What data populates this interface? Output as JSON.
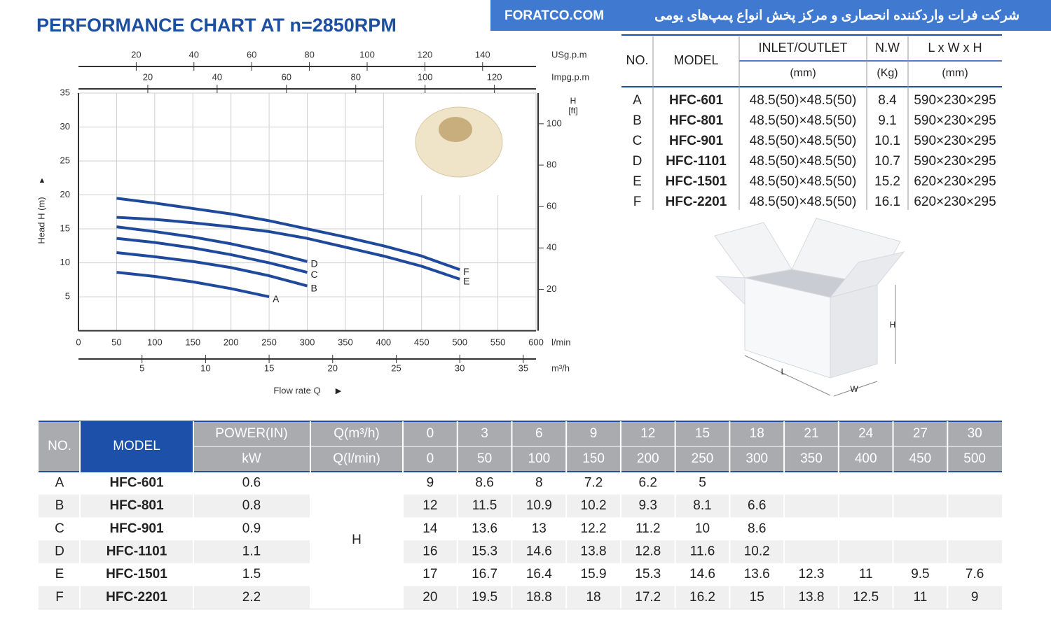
{
  "banner": {
    "site": "FORATCO.COM",
    "text": "شرکت فرات واردکننده انحصاری و مرکز پخش انواع پمپ‌های یومی"
  },
  "chart_data": {
    "type": "line",
    "title": "PERFORMANCE CHART AT n=2850RPM",
    "x": [
      50,
      100,
      150,
      200,
      250,
      300,
      350,
      400,
      450,
      500
    ],
    "xlim": [
      0,
      600
    ],
    "xticks": [
      0,
      50,
      100,
      150,
      200,
      250,
      300,
      350,
      400,
      450,
      500,
      550,
      600
    ],
    "xlabel": "l/min",
    "x_title": "Flow rate Q",
    "ylim": [
      0,
      35
    ],
    "yticks": [
      5,
      10,
      15,
      20,
      25,
      30,
      35
    ],
    "ylabel": "Head H (m)",
    "y2lim": [
      0,
      114.83
    ],
    "y2ticks": [
      20,
      40,
      60,
      80,
      100
    ],
    "y2label": [
      "H",
      "[ft]"
    ],
    "extra_x_axes": [
      {
        "label": "USg.p.m",
        "lim": [
          0,
          158.5
        ],
        "ticks": [
          20,
          40,
          60,
          80,
          100,
          120,
          140
        ],
        "position": "top"
      },
      {
        "label": "Impg.p.m",
        "lim": [
          0,
          132
        ],
        "ticks": [
          20,
          40,
          60,
          80,
          100,
          120
        ],
        "position": "top"
      },
      {
        "label": "m³/h",
        "lim": [
          0,
          36
        ],
        "ticks": [
          5,
          10,
          15,
          20,
          25,
          30,
          35
        ],
        "position": "bottom"
      }
    ],
    "grid": true,
    "series": [
      {
        "name": "A",
        "color": "#1f4a9c",
        "values": [
          8.6,
          8,
          7.2,
          6.2,
          5,
          null,
          null,
          null,
          null,
          null
        ]
      },
      {
        "name": "B",
        "color": "#1f4a9c",
        "values": [
          11.5,
          10.9,
          10.2,
          9.3,
          8.1,
          6.6,
          null,
          null,
          null,
          null
        ]
      },
      {
        "name": "C",
        "color": "#1f4a9c",
        "values": [
          13.6,
          13,
          12.2,
          11.2,
          10,
          8.6,
          null,
          null,
          null,
          null
        ]
      },
      {
        "name": "D",
        "color": "#1f4a9c",
        "values": [
          15.3,
          14.6,
          13.8,
          12.8,
          11.6,
          10.2,
          null,
          null,
          null,
          null
        ]
      },
      {
        "name": "E",
        "color": "#1f4a9c",
        "values": [
          16.7,
          16.4,
          15.9,
          15.3,
          14.6,
          13.6,
          12.3,
          11,
          9.5,
          7.6
        ]
      },
      {
        "name": "F",
        "color": "#1f4a9c",
        "values": [
          19.5,
          18.8,
          18,
          17.2,
          16.2,
          15,
          13.8,
          12.5,
          11,
          9
        ]
      }
    ]
  },
  "spec_table": {
    "headers": [
      "NO.",
      "MODEL",
      "INLET/OUTLET",
      "N.W",
      "L x W x H"
    ],
    "units": [
      "(mm)",
      "(Kg)",
      "(mm)"
    ],
    "rows": [
      [
        "A",
        "HFC-601",
        "48.5(50)×48.5(50)",
        8.4,
        "590×230×295"
      ],
      [
        "B",
        "HFC-801",
        "48.5(50)×48.5(50)",
        9.1,
        "590×230×295"
      ],
      [
        "C",
        "HFC-901",
        "48.5(50)×48.5(50)",
        10.1,
        "590×230×295"
      ],
      [
        "D",
        "HFC-1101",
        "48.5(50)×48.5(50)",
        10.7,
        "590×230×295"
      ],
      [
        "E",
        "HFC-1501",
        "48.5(50)×48.5(50)",
        15.2,
        "620×230×295"
      ],
      [
        "F",
        "HFC-2201",
        "48.5(50)×48.5(50)",
        16.1,
        "620×230×295"
      ]
    ]
  },
  "box_diagram": {
    "labels": {
      "h": "H",
      "l": "L",
      "w": "W"
    }
  },
  "performance_table": {
    "headers": {
      "no": "NO.",
      "model": "MODEL",
      "power": "POWER(IN)",
      "power_unit": "kW",
      "q1": "Q(m³/h)",
      "q2": "Q(l/min)"
    },
    "q_m3h": [
      0,
      3,
      6,
      9,
      12,
      15,
      18,
      21,
      24,
      27,
      30
    ],
    "q_lmin": [
      0,
      50,
      100,
      150,
      200,
      250,
      300,
      350,
      400,
      450,
      500
    ],
    "head_label": "H",
    "rows": [
      {
        "no": "A",
        "model": "HFC-601",
        "kw": 0.6,
        "values": [
          9,
          8.6,
          8,
          7.2,
          6.2,
          5
        ]
      },
      {
        "no": "B",
        "model": "HFC-801",
        "kw": 0.8,
        "values": [
          12,
          11.5,
          10.9,
          10.2,
          9.3,
          8.1,
          6.6
        ]
      },
      {
        "no": "C",
        "model": "HFC-901",
        "kw": 0.9,
        "values": [
          14,
          13.6,
          13,
          12.2,
          11.2,
          10,
          8.6
        ]
      },
      {
        "no": "D",
        "model": "HFC-1101",
        "kw": 1.1,
        "values": [
          16,
          15.3,
          14.6,
          13.8,
          12.8,
          11.6,
          10.2
        ]
      },
      {
        "no": "E",
        "model": "HFC-1501",
        "kw": 1.5,
        "values": [
          17,
          16.7,
          16.4,
          15.9,
          15.3,
          14.6,
          13.6,
          12.3,
          11,
          9.5,
          7.6
        ]
      },
      {
        "no": "F",
        "model": "HFC-2201",
        "kw": 2.2,
        "values": [
          20,
          19.5,
          18.8,
          18,
          17.2,
          16.2,
          15,
          13.8,
          12.5,
          11,
          9
        ]
      }
    ]
  }
}
